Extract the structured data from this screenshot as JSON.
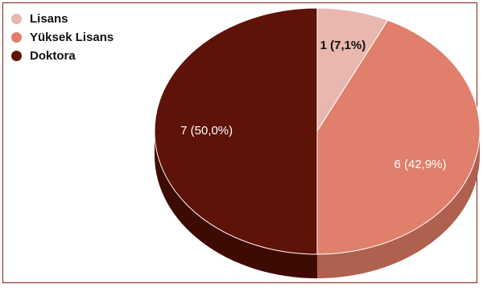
{
  "chart_data": {
    "type": "pie",
    "title": "",
    "style": "3d",
    "slices": [
      {
        "name": "Lisans",
        "value": 1,
        "label": "1 (7,1%)",
        "color": "#e8b7ae",
        "side_color": "#c9968d",
        "label_color": "#111111",
        "label_bold": true
      },
      {
        "name": "Yüksek Lisans",
        "value": 6,
        "label": "6 (42,9%)",
        "color": "#e07f6b",
        "side_color": "#b0604f",
        "label_color": "#ffffff",
        "label_bold": false
      },
      {
        "name": "Doktora",
        "value": 7,
        "label": "7 (50,0%)",
        "color": "#5e1208",
        "side_color": "#3e0b04",
        "label_color": "#ffffff",
        "label_bold": false
      }
    ],
    "legend_position": "top-left"
  }
}
